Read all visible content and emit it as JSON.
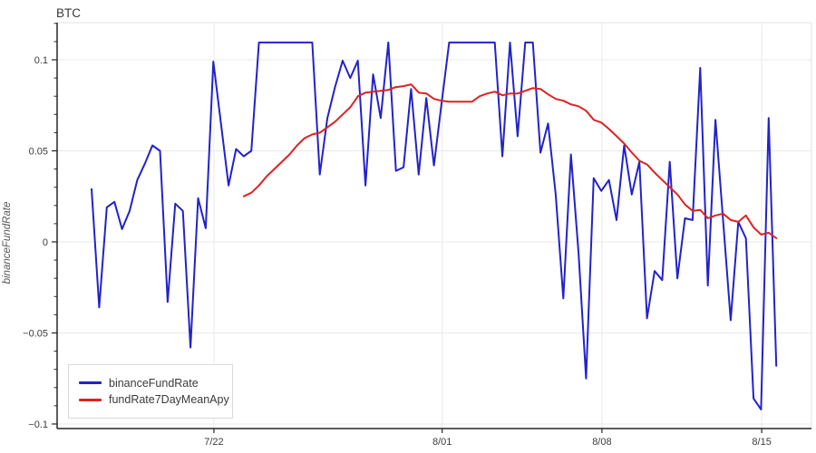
{
  "title": "BTC",
  "y_axis_label": "binanceFundRate",
  "legend": {
    "items": [
      {
        "label": "binanceFundRate",
        "color": "#2222cc"
      },
      {
        "label": "fundRate7DayMeanApy",
        "color": "#dd2222"
      }
    ]
  },
  "colors": {
    "grid": "#e9e9e9",
    "plot_border": "#e3e3e3",
    "spine": "#262626",
    "tick_label": "#3c3c3c",
    "title": "#3a3a3a",
    "axis_title": "#595959"
  },
  "chart_data": {
    "type": "line",
    "title": "BTC",
    "xlabel": "",
    "ylabel": "binanceFundRate",
    "grid": true,
    "legend_position": "bottom-left-inside",
    "x_axis": {
      "day0_date": "7/22",
      "range_days": [
        -6.87,
        26.18
      ],
      "ticks": [
        {
          "day": 0,
          "label": "7/22"
        },
        {
          "day": 10,
          "label": "8/01"
        },
        {
          "day": 17,
          "label": "8/08"
        },
        {
          "day": 24,
          "label": "8/15"
        }
      ]
    },
    "y_axis": {
      "range": [
        -0.1025,
        0.1204
      ],
      "ticks": [
        {
          "value": 0.1,
          "label": "0.1"
        },
        {
          "value": 0.05,
          "label": "0.05"
        },
        {
          "value": 0,
          "label": "0"
        },
        {
          "value": -0.05,
          "label": "−0.05"
        },
        {
          "value": -0.1,
          "label": "−0.1"
        }
      ],
      "minor_step": 0.01
    },
    "series": [
      {
        "name": "binanceFundRate",
        "color": "#2222cc",
        "x_start_day": -5.36,
        "x_step_days": 0.33333,
        "values": [
          0.029,
          -0.036,
          0.019,
          0.022,
          0.007,
          0.017,
          0.034,
          0.043,
          0.053,
          0.05,
          -0.033,
          0.021,
          0.017,
          -0.058,
          0.024,
          0.0075,
          0.099,
          0.065,
          0.031,
          0.051,
          0.047,
          0.05,
          0.1095,
          0.1095,
          0.1095,
          0.1095,
          0.1095,
          0.1095,
          0.1095,
          0.1095,
          0.037,
          0.068,
          0.085,
          0.0995,
          0.09,
          0.0995,
          0.031,
          0.092,
          0.068,
          0.1095,
          0.039,
          0.041,
          0.084,
          0.037,
          0.079,
          0.042,
          0.076,
          0.1095,
          0.1095,
          0.1095,
          0.1095,
          0.1095,
          0.1095,
          0.1095,
          0.047,
          0.1095,
          0.058,
          0.1095,
          0.1095,
          0.049,
          0.065,
          0.026,
          -0.031,
          0.048,
          -0.006,
          -0.075,
          0.035,
          0.028,
          0.034,
          0.012,
          0.053,
          0.026,
          0.044,
          -0.042,
          -0.016,
          -0.021,
          0.044,
          -0.02,
          0.013,
          0.012,
          0.0955,
          -0.024,
          0.067,
          0.012,
          -0.043,
          0.011,
          0.002,
          -0.086,
          -0.092,
          0.068,
          -0.068
        ]
      },
      {
        "name": "fundRate7DayMeanApy",
        "color": "#dd2222",
        "x_start_day": 1.31,
        "x_step_days": 0.33333,
        "values": [
          0.025,
          0.027,
          0.031,
          0.036,
          0.04,
          0.044,
          0.048,
          0.053,
          0.057,
          0.059,
          0.06,
          0.063,
          0.066,
          0.07,
          0.074,
          0.08,
          0.082,
          0.0825,
          0.083,
          0.0835,
          0.085,
          0.0855,
          0.0865,
          0.082,
          0.0815,
          0.0785,
          0.0775,
          0.077,
          0.077,
          0.077,
          0.077,
          0.08,
          0.0815,
          0.0825,
          0.0805,
          0.0815,
          0.0815,
          0.083,
          0.0845,
          0.084,
          0.081,
          0.0785,
          0.0775,
          0.0755,
          0.0745,
          0.072,
          0.067,
          0.0655,
          0.062,
          0.058,
          0.054,
          0.049,
          0.0445,
          0.0425,
          0.038,
          0.034,
          0.03,
          0.026,
          0.0205,
          0.017,
          0.0175,
          0.013,
          0.0145,
          0.0155,
          0.012,
          0.011,
          0.0145,
          0.008,
          0.004,
          0.005,
          0.002
        ]
      }
    ]
  }
}
